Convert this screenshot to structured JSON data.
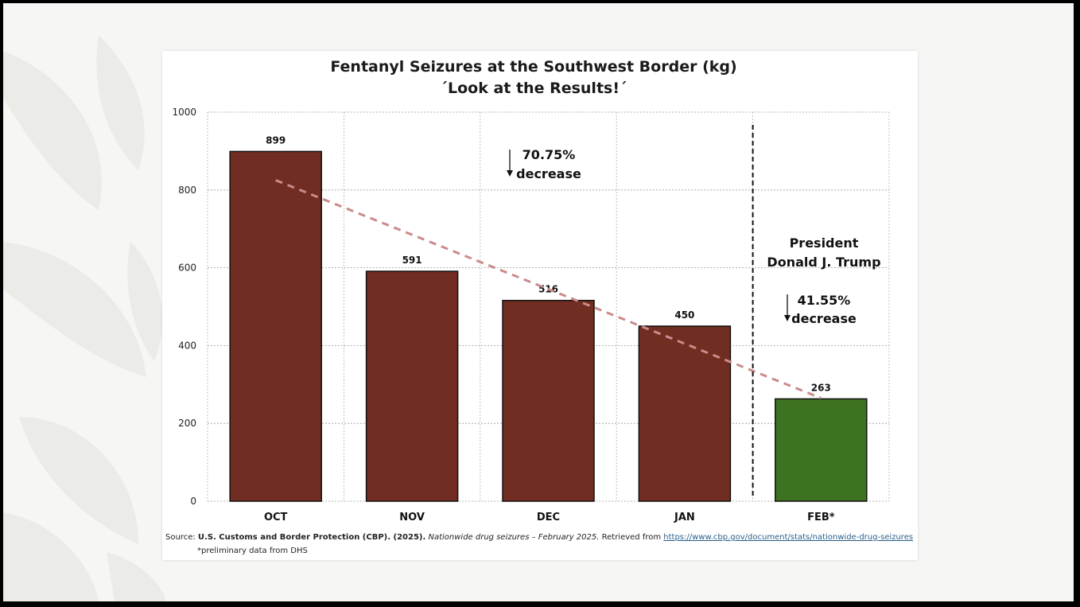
{
  "chart_data": {
    "type": "bar",
    "title": "Fentanyl Seizures at the Southwest Border (kg)",
    "subtitle": "´Look at the Results!´",
    "categories": [
      "OCT",
      "NOV",
      "DEC",
      "JAN",
      "FEB*"
    ],
    "values": [
      899,
      591,
      516,
      450,
      263
    ],
    "data_labels": [
      "899",
      "591",
      "516",
      "450",
      "263"
    ],
    "ylim": [
      0,
      1000
    ],
    "yticks": [
      "0",
      "200",
      "400",
      "600",
      "800",
      "1000"
    ],
    "xlabel": "",
    "ylabel": "",
    "grid": true,
    "bar_colors": [
      "#722d22",
      "#722d22",
      "#722d22",
      "#722d22",
      "#3d7320"
    ],
    "trendline": {
      "style": "dashed",
      "color": "#c98b8b",
      "from": {
        "x": "OCT",
        "y": 825
      },
      "to": {
        "x": "FEB*",
        "y": 265
      }
    },
    "divider": {
      "between": [
        "JAN",
        "FEB*"
      ],
      "style": "dashed",
      "color": "#111111"
    },
    "annotations": [
      {
        "arrow": "down",
        "lines": [
          "70.75%",
          "decrease"
        ]
      },
      {
        "arrow": "none",
        "lines": [
          "President",
          "Donald J. Trump"
        ]
      },
      {
        "arrow": "down",
        "lines": [
          "41.55%",
          "decrease"
        ]
      }
    ]
  },
  "source": {
    "prefix": "Source: ",
    "org": "U.S. Customs and Border Protection (CBP). (2025).",
    "work": "Nationwide drug seizures – February 2025.",
    "retrieved": " Retrieved from ",
    "url": "https://www.cbp.gov/document/stats/nationwide-drug-seizures"
  },
  "footnote": "*preliminary data from DHS"
}
